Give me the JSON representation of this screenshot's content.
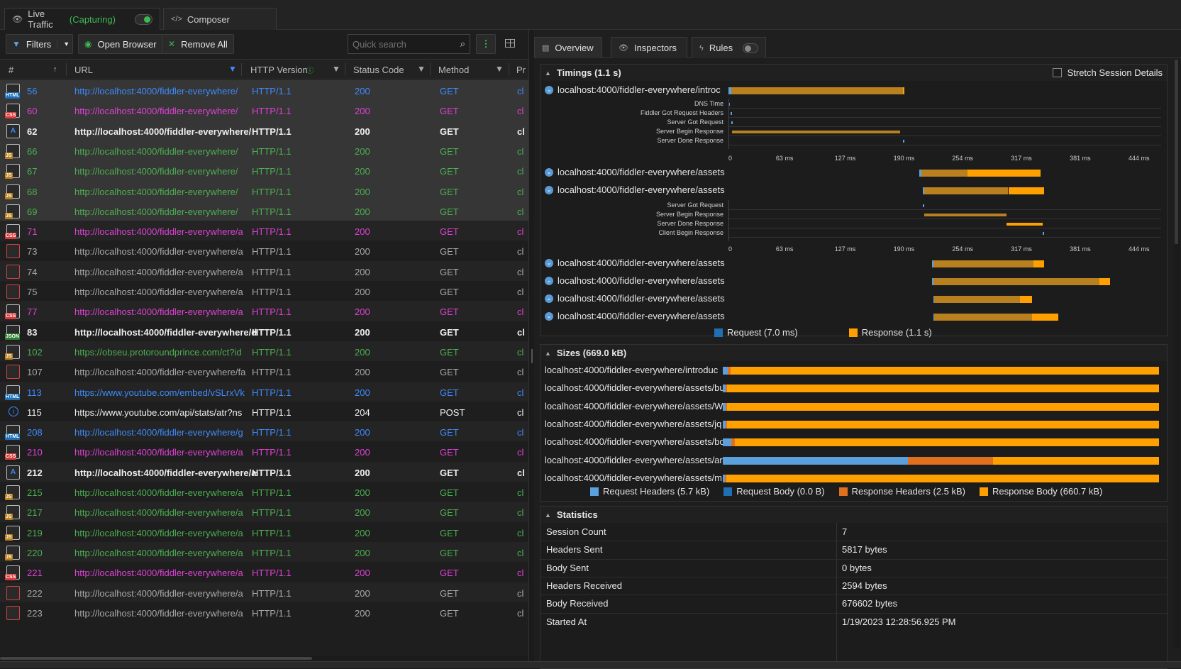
{
  "tabs": {
    "live_traffic": "Live Traffic",
    "capturing": "(Capturing)",
    "composer": "Composer"
  },
  "toolbar": {
    "filters": "Filters",
    "open_browser": "Open Browser",
    "remove_all": "Remove All",
    "search_placeholder": "Quick search"
  },
  "grid": {
    "headers": {
      "num": "#",
      "url": "URL",
      "http_version": "HTTP Version",
      "status": "Status Code",
      "method": "Method",
      "protocol": "Pr"
    },
    "rows": [
      {
        "id": "56",
        "type": "html",
        "url": "http://localhost:4000/fiddler-everywhere/",
        "ver": "HTTP/1.1",
        "status": "200",
        "method": "GET",
        "pr": "cl",
        "color": "blue",
        "sel": true
      },
      {
        "id": "60",
        "type": "css",
        "url": "http://localhost:4000/fiddler-everywhere/",
        "ver": "HTTP/1.1",
        "status": "200",
        "method": "GET",
        "pr": "cl",
        "color": "pink",
        "sel": true
      },
      {
        "id": "62",
        "type": "font",
        "url": "http://localhost:4000/fiddler-everywhere/",
        "ver": "HTTP/1.1",
        "status": "200",
        "method": "GET",
        "pr": "cl",
        "color": "white",
        "sel": true
      },
      {
        "id": "66",
        "type": "js",
        "url": "http://localhost:4000/fiddler-everywhere/",
        "ver": "HTTP/1.1",
        "status": "200",
        "method": "GET",
        "pr": "cl",
        "color": "green",
        "sel": true
      },
      {
        "id": "67",
        "type": "js",
        "url": "http://localhost:4000/fiddler-everywhere/",
        "ver": "HTTP/1.1",
        "status": "200",
        "method": "GET",
        "pr": "cl",
        "color": "green",
        "sel": true
      },
      {
        "id": "68",
        "type": "js",
        "url": "http://localhost:4000/fiddler-everywhere/",
        "ver": "HTTP/1.1",
        "status": "200",
        "method": "GET",
        "pr": "cl",
        "color": "green",
        "sel": true
      },
      {
        "id": "69",
        "type": "js",
        "url": "http://localhost:4000/fiddler-everywhere/",
        "ver": "HTTP/1.1",
        "status": "200",
        "method": "GET",
        "pr": "cl",
        "color": "green",
        "sel": true
      },
      {
        "id": "71",
        "type": "css",
        "url": "http://localhost:4000/fiddler-everywhere/a",
        "ver": "HTTP/1.1",
        "status": "200",
        "method": "GET",
        "pr": "cl",
        "color": "pink",
        "sel": false
      },
      {
        "id": "73",
        "type": "img",
        "url": "http://localhost:4000/fiddler-everywhere/a",
        "ver": "HTTP/1.1",
        "status": "200",
        "method": "GET",
        "pr": "cl",
        "color": "gray",
        "sel": false
      },
      {
        "id": "74",
        "type": "img",
        "url": "http://localhost:4000/fiddler-everywhere/a",
        "ver": "HTTP/1.1",
        "status": "200",
        "method": "GET",
        "pr": "cl",
        "color": "gray",
        "sel": false
      },
      {
        "id": "75",
        "type": "img",
        "url": "http://localhost:4000/fiddler-everywhere/a",
        "ver": "HTTP/1.1",
        "status": "200",
        "method": "GET",
        "pr": "cl",
        "color": "gray",
        "sel": false
      },
      {
        "id": "77",
        "type": "css",
        "url": "http://localhost:4000/fiddler-everywhere/a",
        "ver": "HTTP/1.1",
        "status": "200",
        "method": "GET",
        "pr": "cl",
        "color": "pink",
        "sel": false
      },
      {
        "id": "83",
        "type": "json",
        "url": "http://localhost:4000/fiddler-everywhere/d",
        "ver": "HTTP/1.1",
        "status": "200",
        "method": "GET",
        "pr": "cl",
        "color": "white",
        "sel": false
      },
      {
        "id": "102",
        "type": "js",
        "url": "https://obseu.protoroundprince.com/ct?id",
        "ver": "HTTP/1.1",
        "status": "200",
        "method": "GET",
        "pr": "cl",
        "color": "green",
        "sel": false
      },
      {
        "id": "107",
        "type": "img",
        "url": "http://localhost:4000/fiddler-everywhere/fa",
        "ver": "HTTP/1.1",
        "status": "200",
        "method": "GET",
        "pr": "cl",
        "color": "gray",
        "sel": false
      },
      {
        "id": "113",
        "type": "html",
        "url": "https://www.youtube.com/embed/vSLrxVk",
        "ver": "HTTP/1.1",
        "status": "200",
        "method": "GET",
        "pr": "cl",
        "color": "blue",
        "sel": false
      },
      {
        "id": "115",
        "type": "info",
        "url": "https://www.youtube.com/api/stats/atr?ns",
        "ver": "HTTP/1.1",
        "status": "204",
        "method": "POST",
        "pr": "cl",
        "color": "info",
        "sel": false
      },
      {
        "id": "208",
        "type": "html",
        "url": "http://localhost:4000/fiddler-everywhere/g",
        "ver": "HTTP/1.1",
        "status": "200",
        "method": "GET",
        "pr": "cl",
        "color": "blue",
        "sel": false
      },
      {
        "id": "210",
        "type": "css",
        "url": "http://localhost:4000/fiddler-everywhere/a",
        "ver": "HTTP/1.1",
        "status": "200",
        "method": "GET",
        "pr": "cl",
        "color": "pink",
        "sel": false
      },
      {
        "id": "212",
        "type": "font",
        "url": "http://localhost:4000/fiddler-everywhere/a",
        "ver": "HTTP/1.1",
        "status": "200",
        "method": "GET",
        "pr": "cl",
        "color": "white",
        "sel": false
      },
      {
        "id": "215",
        "type": "js",
        "url": "http://localhost:4000/fiddler-everywhere/a",
        "ver": "HTTP/1.1",
        "status": "200",
        "method": "GET",
        "pr": "cl",
        "color": "green",
        "sel": false
      },
      {
        "id": "217",
        "type": "js",
        "url": "http://localhost:4000/fiddler-everywhere/a",
        "ver": "HTTP/1.1",
        "status": "200",
        "method": "GET",
        "pr": "cl",
        "color": "green",
        "sel": false
      },
      {
        "id": "219",
        "type": "js",
        "url": "http://localhost:4000/fiddler-everywhere/a",
        "ver": "HTTP/1.1",
        "status": "200",
        "method": "GET",
        "pr": "cl",
        "color": "green",
        "sel": false
      },
      {
        "id": "220",
        "type": "js",
        "url": "http://localhost:4000/fiddler-everywhere/a",
        "ver": "HTTP/1.1",
        "status": "200",
        "method": "GET",
        "pr": "cl",
        "color": "green",
        "sel": false
      },
      {
        "id": "221",
        "type": "css",
        "url": "http://localhost:4000/fiddler-everywhere/a",
        "ver": "HTTP/1.1",
        "status": "200",
        "method": "GET",
        "pr": "cl",
        "color": "pink",
        "sel": false
      },
      {
        "id": "222",
        "type": "img",
        "url": "http://localhost:4000/fiddler-everywhere/a",
        "ver": "HTTP/1.1",
        "status": "200",
        "method": "GET",
        "pr": "cl",
        "color": "gray",
        "sel": false
      },
      {
        "id": "223",
        "type": "img",
        "url": "http://localhost:4000/fiddler-everywhere/a",
        "ver": "HTTP/1.1",
        "status": "200",
        "method": "GET",
        "pr": "cl",
        "color": "gray",
        "sel": false
      }
    ]
  },
  "right_tabs": {
    "overview": "Overview",
    "inspectors": "Inspectors",
    "rules": "Rules"
  },
  "timings": {
    "title": "Timings (1.1 s)",
    "stretch_label": "Stretch Session Details",
    "axis": [
      "0",
      "63 ms",
      "127 ms",
      "190 ms",
      "254 ms",
      "317 ms",
      "381 ms",
      "444 ms"
    ],
    "axis_max_ms": 444,
    "sessions": [
      {
        "label": "localhost:4000/fiddler-everywhere/introc",
        "req": [
          0,
          3
        ],
        "resp": [
          3,
          190
        ],
        "light_to": 188
      },
      {
        "label": "localhost:4000/fiddler-everywhere/assets",
        "req": [
          206,
          208
        ],
        "resp": [
          208,
          337
        ],
        "light_to": 258
      },
      {
        "label": "localhost:4000/fiddler-everywhere/assets",
        "req": [
          210,
          211
        ],
        "resp": [
          211,
          341
        ],
        "light_to": 302
      },
      {
        "label": "localhost:4000/fiddler-everywhere/assets",
        "req": [
          220,
          221
        ],
        "resp": [
          221,
          341
        ],
        "light_to": 329
      },
      {
        "label": "localhost:4000/fiddler-everywhere/assets",
        "req": [
          220,
          221
        ],
        "resp": [
          221,
          412
        ],
        "light_to": 400
      },
      {
        "label": "localhost:4000/fiddler-everywhere/assets",
        "req": [
          221,
          222
        ],
        "resp": [
          222,
          328
        ],
        "light_to": 315
      },
      {
        "label": "localhost:4000/fiddler-everywhere/assets",
        "req": [
          221,
          222
        ],
        "resp": [
          222,
          356
        ],
        "light_to": 328
      }
    ],
    "detail1": [
      {
        "name": "DNS Time",
        "from": 0,
        "to": 1
      },
      {
        "name": "Fiddler Got Request Headers",
        "from": 2,
        "to": 3
      },
      {
        "name": "Server Got Request",
        "from": 3,
        "to": 4
      },
      {
        "name": "Server Begin Response",
        "from": 4,
        "to": 185
      },
      {
        "name": "Server Done Response",
        "from": 188,
        "to": 190
      }
    ],
    "detail2": [
      {
        "name": "Server Got Request",
        "from": 210,
        "to": 211
      },
      {
        "name": "Server Begin Response",
        "from": 211,
        "to": 300
      },
      {
        "name": "Server Done Response",
        "from": 300,
        "to": 339
      },
      {
        "name": "Client Begin Response",
        "from": 339,
        "to": 340
      }
    ],
    "legend_request": "Request (7.0 ms)",
    "legend_response": "Response (1.1 s)"
  },
  "sizes": {
    "title": "Sizes (669.0 kB)",
    "rows": [
      {
        "label": "localhost:4000/fiddler-everywhere/introduc",
        "req_h": 1.2,
        "req_b": 0,
        "resp_h": 0.6,
        "resp_b": 98.2
      },
      {
        "label": "localhost:4000/fiddler-everywhere/assets/bu",
        "req_h": 0.6,
        "req_b": 0,
        "resp_h": 0.3,
        "resp_b": 99.1
      },
      {
        "label": "localhost:4000/fiddler-everywhere/assets/W",
        "req_h": 0.6,
        "req_b": 0,
        "resp_h": 0.3,
        "resp_b": 99.1
      },
      {
        "label": "localhost:4000/fiddler-everywhere/assets/jq",
        "req_h": 0.6,
        "req_b": 0,
        "resp_h": 0.3,
        "resp_b": 99.1
      },
      {
        "label": "localhost:4000/fiddler-everywhere/assets/bo",
        "req_h": 2,
        "req_b": 0,
        "resp_h": 0.8,
        "resp_b": 97.2
      },
      {
        "label": "localhost:4000/fiddler-everywhere/assets/ar",
        "req_h": 42.5,
        "req_b": 0,
        "resp_h": 19.5,
        "resp_b": 38
      },
      {
        "label": "localhost:4000/fiddler-everywhere/assets/m",
        "req_h": 0.5,
        "req_b": 0,
        "resp_h": 0.3,
        "resp_b": 99.2
      }
    ],
    "legend": [
      "Request Headers (5.7 kB)",
      "Request Body (0.0 B)",
      "Response Headers (2.5 kB)",
      "Response Body (660.7 kB)"
    ]
  },
  "statistics": {
    "title": "Statistics",
    "rows": [
      {
        "k": "Session Count",
        "v": "7"
      },
      {
        "k": "Headers Sent",
        "v": "5817 bytes"
      },
      {
        "k": "Body Sent",
        "v": "0 bytes"
      },
      {
        "k": "Headers Received",
        "v": "2594 bytes"
      },
      {
        "k": "Body Received",
        "v": "676602 bytes"
      },
      {
        "k": "Started At",
        "v": "1/19/2023 12:28:56.925 PM"
      }
    ]
  },
  "colors": {
    "blue": "#3d8bfd",
    "pink": "#e040d6",
    "green": "#4caf50",
    "orange": "#f39c12",
    "dark_orange": "#b8801e",
    "req_blue": "#1f6fb2",
    "req_header": "#5aa0dc",
    "resp_header": "#e0701e",
    "resp_body": "#ffa000"
  }
}
